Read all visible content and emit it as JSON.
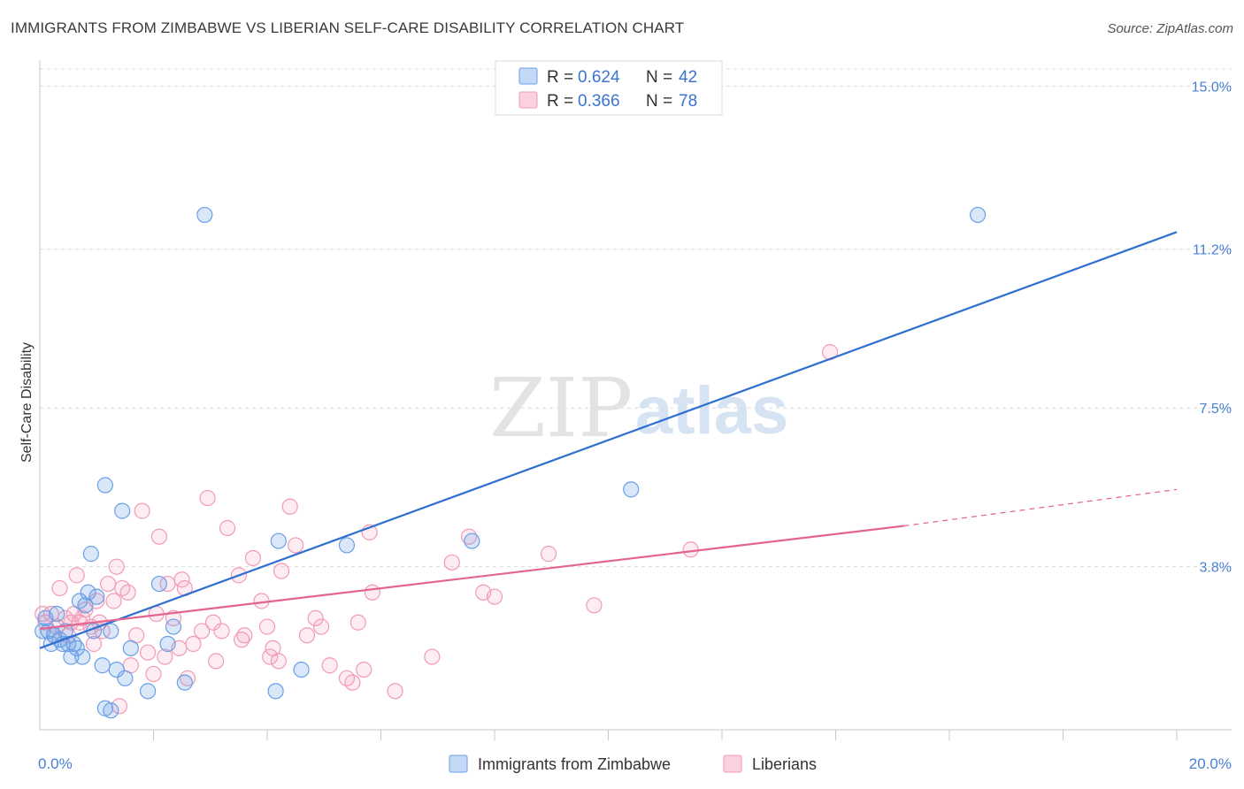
{
  "title": "IMMIGRANTS FROM ZIMBABWE VS LIBERIAN SELF-CARE DISABILITY CORRELATION CHART",
  "source": "Source: ZipAtlas.com",
  "watermark": {
    "zip": "ZIP",
    "atlas": "atlas"
  },
  "chart_data": {
    "type": "scatter",
    "title": "IMMIGRANTS FROM ZIMBABWE VS LIBERIAN SELF-CARE DISABILITY CORRELATION CHART",
    "xlabel": "",
    "ylabel": "Self-Care Disability",
    "xlim": [
      0,
      20
    ],
    "ylim": [
      0,
      15.4
    ],
    "x_tick_labels": [
      "0.0%",
      "20.0%"
    ],
    "y_ticks": [
      3.8,
      7.5,
      11.2,
      15.0
    ],
    "y_tick_labels": [
      "3.8%",
      "7.5%",
      "11.2%",
      "15.0%"
    ],
    "grid": true,
    "legend_position": "top-center",
    "colors": {
      "zimbabwe": "#6a9fe6",
      "zimbabwe_line": "#2f6fd0",
      "liberians": "#f29ab5",
      "liberians_line": "#e2648f",
      "axis_label": "#4a7fd4"
    },
    "series": [
      {
        "name": "Immigrants from Zimbabwe",
        "legend_r_label": "R =",
        "r": "0.624",
        "legend_n_label": "N =",
        "n": "42",
        "trend": {
          "x0": 0.0,
          "y0": 1.9,
          "x1": 20.0,
          "y1": 11.6
        },
        "points": [
          [
            0.1,
            2.6
          ],
          [
            0.15,
            2.3
          ],
          [
            0.2,
            2.0
          ],
          [
            0.25,
            2.2
          ],
          [
            0.3,
            2.7
          ],
          [
            0.35,
            2.1
          ],
          [
            0.4,
            2.0
          ],
          [
            0.45,
            2.3
          ],
          [
            0.5,
            2.0
          ],
          [
            0.55,
            1.7
          ],
          [
            0.6,
            2.0
          ],
          [
            0.65,
            1.9
          ],
          [
            0.7,
            3.0
          ],
          [
            0.75,
            1.7
          ],
          [
            0.8,
            2.9
          ],
          [
            0.85,
            3.2
          ],
          [
            0.9,
            4.1
          ],
          [
            0.95,
            2.3
          ],
          [
            1.0,
            3.1
          ],
          [
            1.1,
            1.5
          ],
          [
            1.15,
            5.7
          ],
          [
            1.25,
            2.3
          ],
          [
            1.35,
            1.4
          ],
          [
            1.45,
            5.1
          ],
          [
            1.5,
            1.2
          ],
          [
            1.6,
            1.9
          ],
          [
            1.9,
            0.9
          ],
          [
            2.1,
            3.4
          ],
          [
            2.25,
            2.0
          ],
          [
            2.35,
            2.4
          ],
          [
            2.55,
            1.1
          ],
          [
            2.9,
            12.0
          ],
          [
            4.15,
            0.9
          ],
          [
            4.2,
            4.4
          ],
          [
            4.6,
            1.4
          ],
          [
            5.4,
            4.3
          ],
          [
            7.6,
            4.4
          ],
          [
            10.4,
            5.6
          ],
          [
            16.5,
            12.0
          ],
          [
            1.15,
            0.5
          ],
          [
            1.25,
            0.45
          ],
          [
            0.05,
            2.3
          ]
        ]
      },
      {
        "name": "Liberians",
        "legend_r_label": "R =",
        "r": "0.366",
        "legend_n_label": "N =",
        "n": "78",
        "trend": {
          "x0": 0.0,
          "y0": 2.35,
          "x1": 15.2,
          "y1": 4.75
        },
        "trend_dashed": {
          "x0": 15.2,
          "y0": 4.75,
          "x1": 20.0,
          "y1": 5.6
        },
        "points": [
          [
            0.1,
            2.5
          ],
          [
            0.2,
            2.7
          ],
          [
            0.3,
            2.4
          ],
          [
            0.35,
            3.3
          ],
          [
            0.45,
            2.6
          ],
          [
            0.5,
            2.2
          ],
          [
            0.6,
            2.7
          ],
          [
            0.7,
            2.5
          ],
          [
            0.75,
            2.6
          ],
          [
            0.8,
            2.8
          ],
          [
            0.9,
            2.4
          ],
          [
            0.95,
            2.0
          ],
          [
            1.0,
            3.0
          ],
          [
            1.1,
            2.3
          ],
          [
            1.2,
            3.4
          ],
          [
            1.3,
            3.0
          ],
          [
            1.35,
            3.8
          ],
          [
            1.45,
            3.3
          ],
          [
            1.55,
            3.2
          ],
          [
            1.6,
            1.5
          ],
          [
            1.7,
            2.2
          ],
          [
            1.8,
            5.1
          ],
          [
            1.9,
            1.8
          ],
          [
            2.0,
            1.3
          ],
          [
            2.05,
            2.7
          ],
          [
            2.1,
            4.5
          ],
          [
            2.2,
            1.7
          ],
          [
            2.25,
            3.4
          ],
          [
            2.35,
            2.6
          ],
          [
            2.45,
            1.9
          ],
          [
            2.5,
            3.5
          ],
          [
            2.55,
            3.3
          ],
          [
            2.6,
            1.2
          ],
          [
            2.7,
            2.0
          ],
          [
            2.85,
            2.3
          ],
          [
            2.95,
            5.4
          ],
          [
            3.05,
            2.5
          ],
          [
            3.1,
            1.6
          ],
          [
            3.2,
            2.3
          ],
          [
            3.3,
            4.7
          ],
          [
            3.5,
            3.6
          ],
          [
            3.55,
            2.1
          ],
          [
            3.6,
            2.2
          ],
          [
            3.75,
            4.0
          ],
          [
            3.9,
            3.0
          ],
          [
            4.0,
            2.4
          ],
          [
            4.05,
            1.7
          ],
          [
            4.1,
            1.9
          ],
          [
            4.2,
            1.6
          ],
          [
            4.25,
            3.7
          ],
          [
            4.4,
            5.2
          ],
          [
            4.5,
            4.3
          ],
          [
            4.7,
            2.2
          ],
          [
            4.85,
            2.6
          ],
          [
            4.95,
            2.4
          ],
          [
            5.1,
            1.5
          ],
          [
            5.4,
            1.2
          ],
          [
            5.5,
            1.1
          ],
          [
            5.6,
            2.5
          ],
          [
            5.7,
            1.4
          ],
          [
            5.8,
            4.6
          ],
          [
            5.85,
            3.2
          ],
          [
            6.25,
            0.9
          ],
          [
            6.9,
            1.7
          ],
          [
            7.25,
            3.9
          ],
          [
            7.55,
            4.5
          ],
          [
            7.8,
            3.2
          ],
          [
            8.0,
            3.1
          ],
          [
            8.95,
            4.1
          ],
          [
            9.75,
            2.9
          ],
          [
            11.45,
            4.2
          ],
          [
            13.9,
            8.8
          ],
          [
            0.05,
            2.7
          ],
          [
            0.25,
            2.2
          ],
          [
            0.55,
            2.5
          ],
          [
            0.65,
            3.6
          ],
          [
            1.4,
            0.55
          ],
          [
            1.05,
            2.5
          ]
        ]
      }
    ]
  }
}
